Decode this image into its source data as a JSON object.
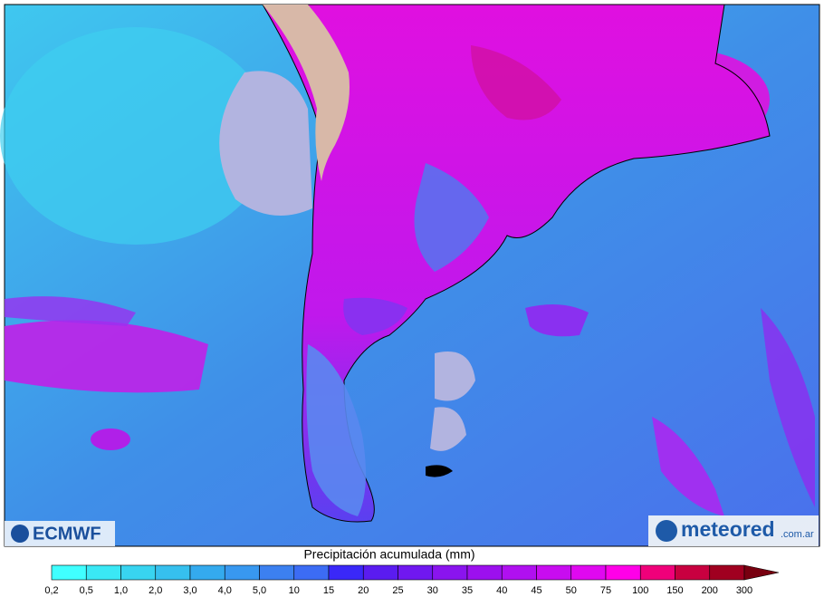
{
  "map": {
    "logo_left": "ECMWF",
    "logo_right": "meteored",
    "logo_right_suffix": ".com.ar"
  },
  "legend": {
    "title": "Precipitación acumulada (mm)",
    "ticks": [
      "0,2",
      "0,5",
      "1,0",
      "2,0",
      "3,0",
      "4,0",
      "5,0",
      "10",
      "15",
      "20",
      "25",
      "30",
      "35",
      "40",
      "45",
      "50",
      "75",
      "100",
      "150",
      "200",
      "300"
    ],
    "colors": [
      "#40ffff",
      "#3ae8f5",
      "#38d4f0",
      "#36c0ee",
      "#34aaee",
      "#3898f0",
      "#3c80f0",
      "#3c6cf4",
      "#3a28f8",
      "#5a1cf0",
      "#7018f0",
      "#8a14ee",
      "#9c10ee",
      "#b010f0",
      "#c80cf0",
      "#e008f0",
      "#ff00e8",
      "#f0007a",
      "#c80040",
      "#a00020",
      "#780010"
    ]
  }
}
